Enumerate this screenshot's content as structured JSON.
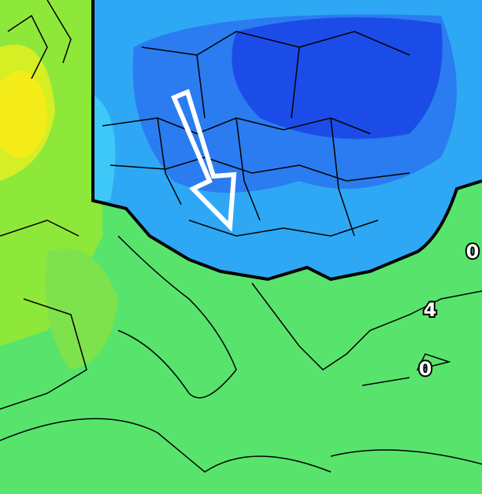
{
  "labels": [
    "0",
    "4",
    "0"
  ]
}
